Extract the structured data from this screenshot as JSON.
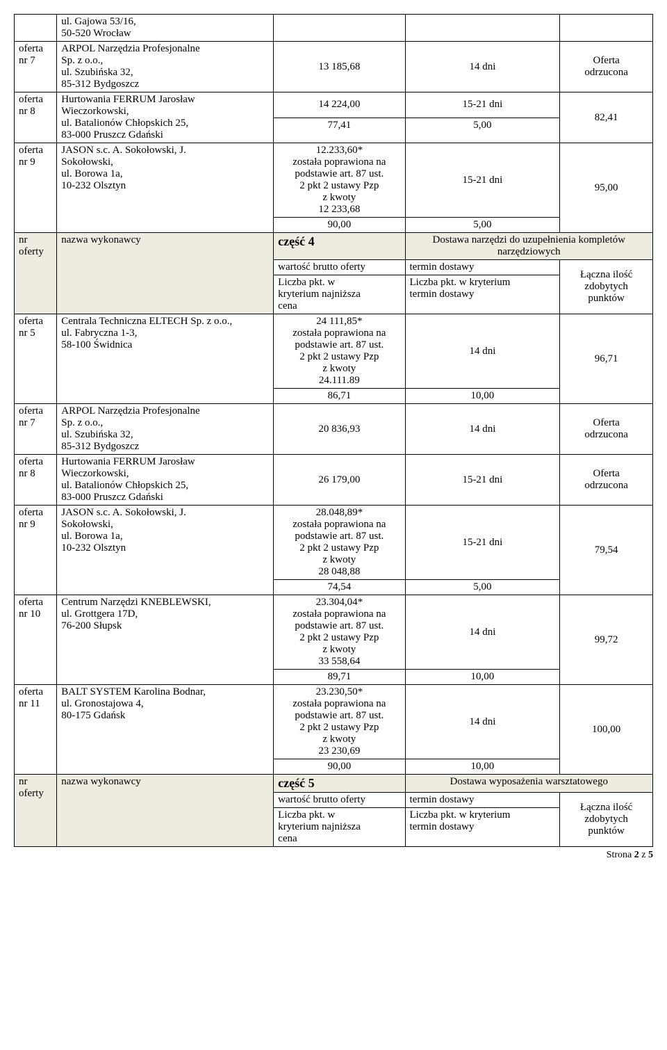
{
  "rows_top": [
    {
      "id": "",
      "name_lines": [
        "ul. Gajowa 53/16,",
        "50-520 Wrocław"
      ],
      "val": "",
      "term": "",
      "pts": "",
      "rowspan_pts": 0
    },
    {
      "id_lines": [
        "oferta",
        "nr 7"
      ],
      "name_lines": [
        "ARPOL Narzędzia Profesjonalne",
        "Sp. z o.o.,",
        "ul. Szubińska 32,",
        "85-312 Bydgoszcz"
      ],
      "val": "13 185,68",
      "term": "14 dni",
      "pts_lines": [
        "Oferta",
        "odrzucona"
      ]
    },
    {
      "id_lines": [
        "oferta",
        "nr 8"
      ],
      "name_lines": [
        "Hurtowania FERRUM Jarosław",
        "Wieczorkowski,",
        "ul. Batalionów Chłopskich 25,",
        "83-000 Pruszcz Gdański"
      ],
      "sub": [
        {
          "val": "14 224,00",
          "term": "15-21 dni"
        },
        {
          "val": "77,41",
          "term": "5,00"
        }
      ],
      "pts": "82,41"
    },
    {
      "id_lines": [
        "oferta",
        "nr 9"
      ],
      "name_lines": [
        "JASON s.c. A. Sokołowski, J.",
        "Sokołowski,",
        "ul. Borowa 1a,",
        "10-232 Olsztyn"
      ],
      "sub": [
        {
          "val_lines": [
            "12.233,60*",
            "została poprawiona na",
            "podstawie art. 87 ust.",
            "2 pkt  2 ustawy Pzp",
            "z kwoty",
            "12 233,68"
          ],
          "term": "15-21 dni"
        },
        {
          "val": "90,00",
          "term": "5,00"
        }
      ],
      "pts": "95,00"
    }
  ],
  "section4": {
    "hdr_id_lines": [
      "nr",
      "oferty"
    ],
    "hdr_name": "nazwa wykonawcy",
    "hdr_part": "część 4",
    "hdr_desc_lines": [
      "Dostawa narzędzi do uzupełnienia kompletów",
      "narzędziowych"
    ],
    "subhdr_val": "wartość brutto oferty",
    "subhdr_term": "termin dostawy",
    "subhdr_val2_lines": [
      "Liczba pkt. w",
      "kryterium najniższa",
      "cena"
    ],
    "subhdr_term2_lines": [
      "Liczba pkt. w kryterium",
      "termin dostawy"
    ],
    "subhdr_pts_lines": [
      "Łączna ilość",
      "zdobytych",
      "punktów"
    ]
  },
  "rows_s4": [
    {
      "id_lines": [
        "oferta",
        "nr 5"
      ],
      "name_lines": [
        "Centrala Techniczna ELTECH Sp. z o.o.,",
        "ul. Fabryczna 1-3,",
        "58-100 Świdnica"
      ],
      "sub": [
        {
          "val_lines": [
            "24 111,85*",
            "została poprawiona na",
            "podstawie art. 87 ust.",
            "2 pkt  2 ustawy Pzp",
            "z kwoty",
            "24.111.89"
          ],
          "term": "14 dni"
        },
        {
          "val": "86,71",
          "term": "10,00"
        }
      ],
      "pts": "96,71"
    },
    {
      "id_lines": [
        "oferta",
        "nr 7"
      ],
      "name_lines": [
        "ARPOL Narzędzia Profesjonalne",
        "Sp. z o.o.,",
        "ul. Szubińska 32,",
        "85-312 Bydgoszcz"
      ],
      "val": "20 836,93",
      "term": "14 dni",
      "pts_lines": [
        "Oferta",
        "odrzucona"
      ]
    },
    {
      "id_lines": [
        "oferta",
        "nr 8"
      ],
      "name_lines": [
        "Hurtowania FERRUM Jarosław",
        "Wieczorkowski,",
        "ul. Batalionów Chłopskich 25,",
        "83-000 Pruszcz Gdański"
      ],
      "val": "26 179,00",
      "term": "15-21 dni",
      "pts_lines": [
        "Oferta",
        "odrzucona"
      ]
    },
    {
      "id_lines": [
        "oferta",
        "nr 9"
      ],
      "name_lines": [
        "JASON s.c. A. Sokołowski, J.",
        "Sokołowski,",
        "ul. Borowa 1a,",
        "10-232 Olsztyn"
      ],
      "sub": [
        {
          "val_lines": [
            "28.048,89*",
            "została poprawiona na",
            "podstawie art. 87 ust.",
            "2 pkt  2 ustawy Pzp",
            "z kwoty",
            "28 048,88"
          ],
          "term": "15-21 dni"
        },
        {
          "val": "74,54",
          "term": "5,00"
        }
      ],
      "pts": "79,54"
    },
    {
      "id_lines": [
        "oferta",
        "nr 10"
      ],
      "name_lines": [
        "Centrum Narzędzi KNEBLEWSKI,",
        "ul. Grottgera 17D,",
        "76-200 Słupsk"
      ],
      "sub": [
        {
          "val_lines": [
            "23.304,04*",
            "została poprawiona na",
            "podstawie art. 87 ust.",
            "2 pkt  2 ustawy Pzp",
            "z kwoty",
            "33 558,64"
          ],
          "term": "14 dni"
        },
        {
          "val": "89,71",
          "term": "10,00"
        }
      ],
      "pts": "99,72"
    },
    {
      "id_lines": [
        "oferta",
        "nr 11"
      ],
      "name_lines": [
        "BALT SYSTEM Karolina Bodnar,",
        "ul. Gronostajowa 4,",
        "80-175 Gdańsk"
      ],
      "sub": [
        {
          "val_lines": [
            "23.230,50*",
            "została poprawiona na",
            "podstawie art. 87 ust.",
            "2 pkt  2 ustawy Pzp",
            "z kwoty",
            "23 230,69"
          ],
          "term": "14 dni"
        },
        {
          "val": "90,00",
          "term": "10,00"
        }
      ],
      "pts": "100,00"
    }
  ],
  "section5": {
    "hdr_id_lines": [
      "nr",
      "oferty"
    ],
    "hdr_name": "nazwa wykonawcy",
    "hdr_part": "część 5",
    "hdr_desc": "Dostawa wyposażenia warsztatowego",
    "subhdr_val": "wartość brutto oferty",
    "subhdr_term": "termin dostawy",
    "subhdr_val2_lines": [
      "Liczba pkt. w",
      "kryterium najniższa",
      "cena"
    ],
    "subhdr_term2_lines": [
      "Liczba pkt. w kryterium",
      "termin dostawy"
    ],
    "subhdr_pts_lines": [
      "Łączna ilość",
      "zdobytych",
      "punktów"
    ]
  },
  "footer": {
    "prefix": "Strona ",
    "page": "2",
    "of": " z ",
    "total": "5"
  }
}
